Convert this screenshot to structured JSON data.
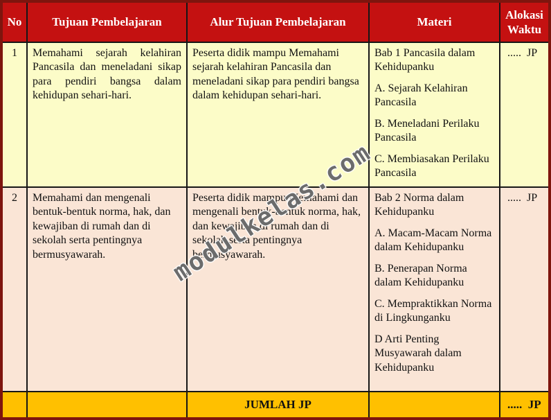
{
  "watermark": "modulkelas.com",
  "colors": {
    "header_bg": "#c41111",
    "header_text": "#ffffff",
    "row1_bg": "#fcfcc8",
    "row2_bg": "#fae5d6",
    "footer_bg": "#ffc000",
    "outer_border": "#7e150e",
    "inner_border": "#161616"
  },
  "table": {
    "headers": [
      "No",
      "Tujuan Pembelajaran",
      "Alur Tujuan Pembelajaran",
      "Materi",
      "Alokasi Waktu"
    ],
    "rows": [
      {
        "no": "1",
        "tujuan": "Memahami sejarah kelahiran Pancasila dan meneladani sikap para pendiri bangsa dalam kehidupan sehari-hari.",
        "alur": "Peserta didik mampu Memahami sejarah kelahiran Pancasila dan meneladani sikap para pendiri bangsa dalam kehidupan sehari-hari.",
        "materi": [
          "Bab 1 Pancasila dalam Kehidupanku",
          "A. Sejarah Kelahiran Pancasila",
          "B. Meneladani Perilaku Pancasila",
          "C. Membiasakan Perilaku Pancasila"
        ],
        "alokasi": ".....  JP"
      },
      {
        "no": "2",
        "tujuan": "Memahami dan mengenali bentuk-bentuk norma, hak, dan kewajiban di rumah dan di sekolah serta pentingnya bermusyawarah.",
        "alur": "Peserta didik mampu Memahami dan mengenali bentuk-bentuk norma, hak, dan kewajiban di rumah dan di sekolah serta pentingnya bermusyawarah.",
        "materi": [
          "Bab 2 Norma dalam Kehidupanku",
          "A. Macam-Macam Norma dalam Kehidupanku",
          "B. Penerapan Norma dalam Kehidupanku",
          "C. Mempraktikkan Norma di Lingkunganku",
          "D Arti Penting Musyawarah dalam Kehidupanku"
        ],
        "alokasi": ".....  JP"
      }
    ],
    "footer": {
      "label": "JUMLAH JP",
      "alokasi": ".....  JP"
    }
  }
}
